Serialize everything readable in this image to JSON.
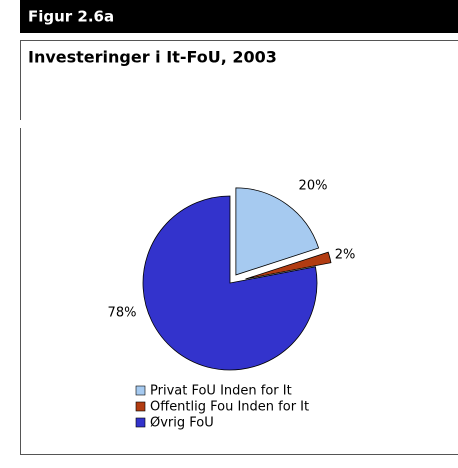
{
  "chart_data": {
    "type": "pie",
    "figure_label": "Figur 2.6a",
    "title": "Investeringer i It-FoU, 2003",
    "categories": [
      "Privat FoU Inden for It",
      "Offentlig Fou Inden for It",
      "Øvrig FoU"
    ],
    "values": [
      20,
      2,
      78
    ],
    "value_labels": [
      "20%",
      "2%",
      "78%"
    ],
    "colors": [
      "#a6caf0",
      "#b23c12",
      "#3333cc"
    ],
    "exploded": [
      true,
      true,
      false
    ]
  }
}
